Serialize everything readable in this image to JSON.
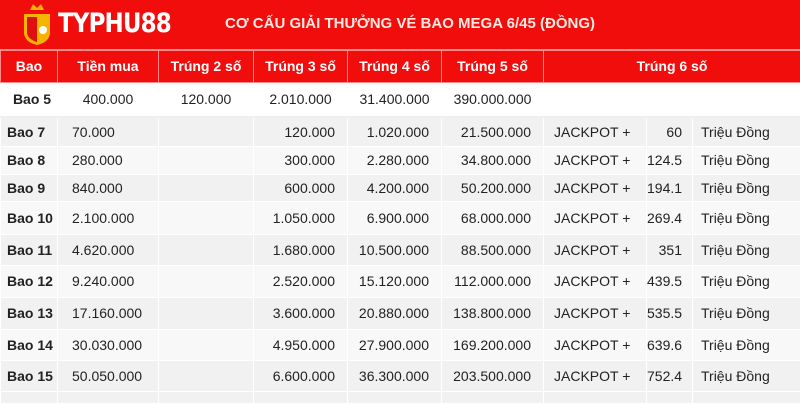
{
  "header": {
    "brand": "TYPHU88",
    "title": "CƠ CẤU GIẢI THƯỞNG VÉ BAO MEGA 6/45 (ĐỒNG)",
    "color": "#f20d0d"
  },
  "columns": [
    "Bao",
    "Tiền mua",
    "Trúng 2 số",
    "Trúng 3 số",
    "Trúng 4 số",
    "Trúng 5 số",
    "Trúng 6 số"
  ],
  "first_row": {
    "bao": "Bao 5",
    "tien_mua": "400.000",
    "t2": "120.000",
    "t3": "2.010.000",
    "t4": "31.400.000",
    "t5": "390.000.000"
  },
  "rows": [
    {
      "bao": "Bao 7",
      "tien_mua": "70.000",
      "t3": "120.000",
      "t4": "1.020.000",
      "t5": "21.500.000",
      "jackpot": "JACKPOT +",
      "extra": "60",
      "unit": "Triệu Đồng"
    },
    {
      "bao": "Bao 8",
      "tien_mua": "280.000",
      "t3": "300.000",
      "t4": "2.280.000",
      "t5": "34.800.000",
      "jackpot": "JACKPOT +",
      "extra": "124.5",
      "unit": "Triệu Đồng"
    },
    {
      "bao": "Bao 9",
      "tien_mua": "840.000",
      "t3": "600.000",
      "t4": "4.200.000",
      "t5": "50.200.000",
      "jackpot": "JACKPOT +",
      "extra": "194.1",
      "unit": "Triệu Đồng"
    },
    {
      "bao": "Bao 10",
      "tien_mua": "2.100.000",
      "t3": "1.050.000",
      "t4": "6.900.000",
      "t5": "68.000.000",
      "jackpot": "JACKPOT +",
      "extra": "269.4",
      "unit": "Triệu Đồng"
    },
    {
      "bao": "Bao 11",
      "tien_mua": "4.620.000",
      "t3": "1.680.000",
      "t4": "10.500.000",
      "t5": "88.500.000",
      "jackpot": "JACKPOT +",
      "extra": "351",
      "unit": "Triệu Đồng"
    },
    {
      "bao": "Bao 12",
      "tien_mua": "9.240.000",
      "t3": "2.520.000",
      "t4": "15.120.000",
      "t5": "112.000.000",
      "jackpot": "JACKPOT +",
      "extra": "439.5",
      "unit": "Triệu Đồng"
    },
    {
      "bao": "Bao 13",
      "tien_mua": "17.160.000",
      "t3": "3.600.000",
      "t4": "20.880.000",
      "t5": "138.800.000",
      "jackpot": "JACKPOT +",
      "extra": "535.5",
      "unit": "Triệu Đồng"
    },
    {
      "bao": "Bao 14",
      "tien_mua": "30.030.000",
      "t3": "4.950.000",
      "t4": "27.900.000",
      "t5": "169.200.000",
      "jackpot": "JACKPOT +",
      "extra": "639.6",
      "unit": "Triệu Đồng"
    },
    {
      "bao": "Bao 15",
      "tien_mua": "50.050.000",
      "t3": "6.600.000",
      "t4": "36.300.000",
      "t5": "203.500.000",
      "jackpot": "JACKPOT +",
      "extra": "752.4",
      "unit": "Triệu Đồng"
    }
  ]
}
